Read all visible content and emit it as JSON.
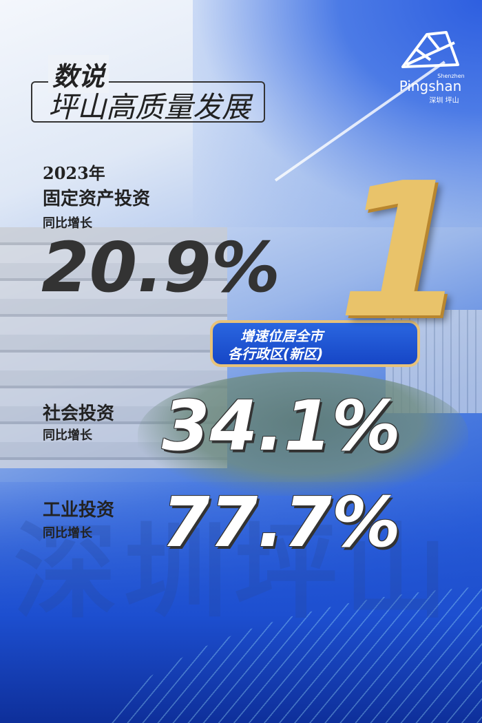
{
  "header": {
    "title_line1": "数说",
    "title_line2": "坪山高质量发展"
  },
  "logo": {
    "shenzhen": "Shenzhen",
    "pingshan": "Pingshan",
    "cn": "深圳 坪山"
  },
  "fixed_asset": {
    "year": "2023年",
    "label": "固定资产投资",
    "sub": "同比增长",
    "value": "20.9%"
  },
  "rank": {
    "number": "1",
    "line1": "增速位居全市",
    "line2": "各行政区(新区)"
  },
  "social": {
    "label": "社会投资",
    "sub": "同比增长",
    "value": "34.1%"
  },
  "industrial": {
    "label": "工业投资",
    "sub": "同比增长",
    "value": "77.7%"
  },
  "watermark": "深圳坪山",
  "colors": {
    "blue": "#2a5fd8",
    "gold": "#e9c36a",
    "dark_text": "#333333"
  }
}
